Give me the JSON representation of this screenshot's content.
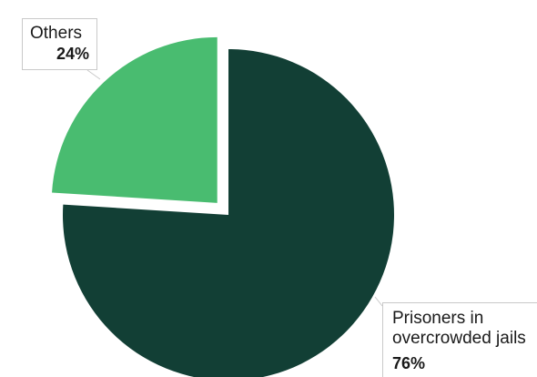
{
  "chart_data": {
    "type": "pie",
    "slices": [
      {
        "label": "Prisoners in overcrowded jails",
        "value": 76,
        "value_label": "76%",
        "color": "#123f35",
        "exploded": false
      },
      {
        "label": "Others",
        "value": 24,
        "value_label": "24%",
        "color": "#49bc70",
        "exploded": true
      }
    ],
    "start_angle_deg": 0,
    "direction": "clockwise"
  }
}
